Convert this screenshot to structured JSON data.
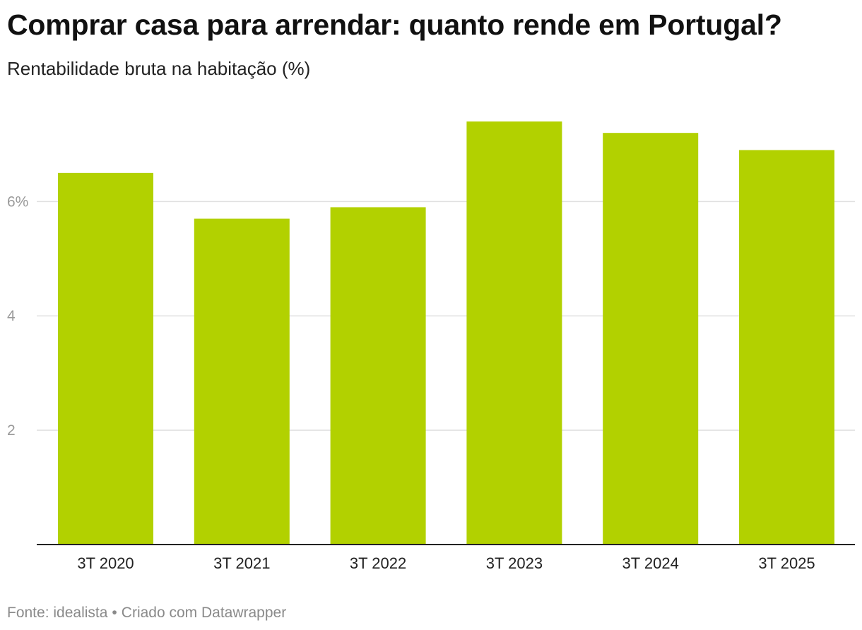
{
  "header": {
    "title": "Comprar casa para arrendar: quanto rende em Portugal?",
    "subtitle": "Rentabilidade bruta na habitação (%)"
  },
  "footer": {
    "source": "Fonte: idealista",
    "separator": "•",
    "credit": "Criado com Datawrapper"
  },
  "colors": {
    "bar": "#b2d100",
    "gridline": "#e0e0e0",
    "baseline": "#222222"
  },
  "chart_data": {
    "type": "bar",
    "title": "Comprar casa para arrendar: quanto rende em Portugal?",
    "subtitle": "Rentabilidade bruta na habitação (%)",
    "categories": [
      "3T 2020",
      "3T 2021",
      "3T 2022",
      "3T 2023",
      "3T 2024",
      "3T 2025"
    ],
    "values": [
      6.5,
      5.7,
      5.9,
      7.4,
      7.2,
      6.9
    ],
    "ylim": [
      0,
      7.4
    ],
    "yticks": [
      2,
      4,
      6
    ],
    "ytick_labels": [
      "2",
      "4",
      "6%"
    ],
    "grid": true,
    "legend": "none"
  }
}
